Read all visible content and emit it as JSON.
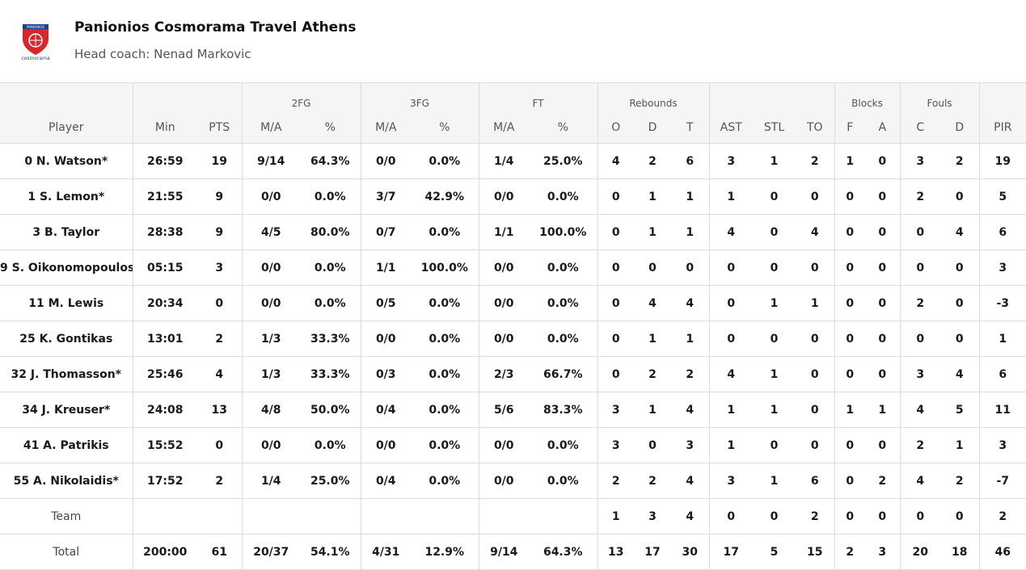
{
  "header": {
    "team_name": "Panionios Cosmorama Travel Athens",
    "coach": "Head coach: Nenad Markovic",
    "logo_icon": "panionios-crest-icon",
    "logo_text": "PANIONIOS",
    "sponsor_text": "cosmorama"
  },
  "groups": {
    "fg2": "2FG",
    "fg3": "3FG",
    "ft": "FT",
    "rebounds": "Rebounds",
    "blocks": "Blocks",
    "fouls": "Fouls"
  },
  "columns": {
    "player": "Player",
    "min": "Min",
    "pts": "PTS",
    "fg2_ma": "M/A",
    "fg2_pct": "%",
    "fg3_ma": "M/A",
    "fg3_pct": "%",
    "ft_ma": "M/A",
    "ft_pct": "%",
    "reb_o": "O",
    "reb_d": "D",
    "reb_t": "T",
    "ast": "AST",
    "stl": "STL",
    "to": "TO",
    "blk_f": "F",
    "blk_a": "A",
    "foul_c": "C",
    "foul_d": "D",
    "pir": "PIR"
  },
  "rows": [
    {
      "player": "0 N. Watson*",
      "min": "26:59",
      "pts": "19",
      "fg2_ma": "9/14",
      "fg2_pct": "64.3%",
      "fg3_ma": "0/0",
      "fg3_pct": "0.0%",
      "ft_ma": "1/4",
      "ft_pct": "25.0%",
      "reb_o": "4",
      "reb_d": "2",
      "reb_t": "6",
      "ast": "3",
      "stl": "1",
      "to": "2",
      "blk_f": "1",
      "blk_a": "0",
      "foul_c": "3",
      "foul_d": "2",
      "pir": "19"
    },
    {
      "player": "1 S. Lemon*",
      "min": "21:55",
      "pts": "9",
      "fg2_ma": "0/0",
      "fg2_pct": "0.0%",
      "fg3_ma": "3/7",
      "fg3_pct": "42.9%",
      "ft_ma": "0/0",
      "ft_pct": "0.0%",
      "reb_o": "0",
      "reb_d": "1",
      "reb_t": "1",
      "ast": "1",
      "stl": "0",
      "to": "0",
      "blk_f": "0",
      "blk_a": "0",
      "foul_c": "2",
      "foul_d": "0",
      "pir": "5"
    },
    {
      "player": "3 B. Taylor",
      "min": "28:38",
      "pts": "9",
      "fg2_ma": "4/5",
      "fg2_pct": "80.0%",
      "fg3_ma": "0/7",
      "fg3_pct": "0.0%",
      "ft_ma": "1/1",
      "ft_pct": "100.0%",
      "reb_o": "0",
      "reb_d": "1",
      "reb_t": "1",
      "ast": "4",
      "stl": "0",
      "to": "4",
      "blk_f": "0",
      "blk_a": "0",
      "foul_c": "0",
      "foul_d": "4",
      "pir": "6"
    },
    {
      "player": "9 S. Oikonomopoulos",
      "min": "05:15",
      "pts": "3",
      "fg2_ma": "0/0",
      "fg2_pct": "0.0%",
      "fg3_ma": "1/1",
      "fg3_pct": "100.0%",
      "ft_ma": "0/0",
      "ft_pct": "0.0%",
      "reb_o": "0",
      "reb_d": "0",
      "reb_t": "0",
      "ast": "0",
      "stl": "0",
      "to": "0",
      "blk_f": "0",
      "blk_a": "0",
      "foul_c": "0",
      "foul_d": "0",
      "pir": "3"
    },
    {
      "player": "11 M. Lewis",
      "min": "20:34",
      "pts": "0",
      "fg2_ma": "0/0",
      "fg2_pct": "0.0%",
      "fg3_ma": "0/5",
      "fg3_pct": "0.0%",
      "ft_ma": "0/0",
      "ft_pct": "0.0%",
      "reb_o": "0",
      "reb_d": "4",
      "reb_t": "4",
      "ast": "0",
      "stl": "1",
      "to": "1",
      "blk_f": "0",
      "blk_a": "0",
      "foul_c": "2",
      "foul_d": "0",
      "pir": "-3"
    },
    {
      "player": "25 K. Gontikas",
      "min": "13:01",
      "pts": "2",
      "fg2_ma": "1/3",
      "fg2_pct": "33.3%",
      "fg3_ma": "0/0",
      "fg3_pct": "0.0%",
      "ft_ma": "0/0",
      "ft_pct": "0.0%",
      "reb_o": "0",
      "reb_d": "1",
      "reb_t": "1",
      "ast": "0",
      "stl": "0",
      "to": "0",
      "blk_f": "0",
      "blk_a": "0",
      "foul_c": "0",
      "foul_d": "0",
      "pir": "1"
    },
    {
      "player": "32 J. Thomasson*",
      "min": "25:46",
      "pts": "4",
      "fg2_ma": "1/3",
      "fg2_pct": "33.3%",
      "fg3_ma": "0/3",
      "fg3_pct": "0.0%",
      "ft_ma": "2/3",
      "ft_pct": "66.7%",
      "reb_o": "0",
      "reb_d": "2",
      "reb_t": "2",
      "ast": "4",
      "stl": "1",
      "to": "0",
      "blk_f": "0",
      "blk_a": "0",
      "foul_c": "3",
      "foul_d": "4",
      "pir": "6"
    },
    {
      "player": "34 J. Kreuser*",
      "min": "24:08",
      "pts": "13",
      "fg2_ma": "4/8",
      "fg2_pct": "50.0%",
      "fg3_ma": "0/4",
      "fg3_pct": "0.0%",
      "ft_ma": "5/6",
      "ft_pct": "83.3%",
      "reb_o": "3",
      "reb_d": "1",
      "reb_t": "4",
      "ast": "1",
      "stl": "1",
      "to": "0",
      "blk_f": "1",
      "blk_a": "1",
      "foul_c": "4",
      "foul_d": "5",
      "pir": "11"
    },
    {
      "player": "41 A. Patrikis",
      "min": "15:52",
      "pts": "0",
      "fg2_ma": "0/0",
      "fg2_pct": "0.0%",
      "fg3_ma": "0/0",
      "fg3_pct": "0.0%",
      "ft_ma": "0/0",
      "ft_pct": "0.0%",
      "reb_o": "3",
      "reb_d": "0",
      "reb_t": "3",
      "ast": "1",
      "stl": "0",
      "to": "0",
      "blk_f": "0",
      "blk_a": "0",
      "foul_c": "2",
      "foul_d": "1",
      "pir": "3"
    },
    {
      "player": "55 A. Nikolaidis*",
      "min": "17:52",
      "pts": "2",
      "fg2_ma": "1/4",
      "fg2_pct": "25.0%",
      "fg3_ma": "0/4",
      "fg3_pct": "0.0%",
      "ft_ma": "0/0",
      "ft_pct": "0.0%",
      "reb_o": "2",
      "reb_d": "2",
      "reb_t": "4",
      "ast": "3",
      "stl": "1",
      "to": "6",
      "blk_f": "0",
      "blk_a": "2",
      "foul_c": "4",
      "foul_d": "2",
      "pir": "-7"
    }
  ],
  "team_row": {
    "player": "Team",
    "min": "",
    "pts": "",
    "fg2_ma": "",
    "fg2_pct": "",
    "fg3_ma": "",
    "fg3_pct": "",
    "ft_ma": "",
    "ft_pct": "",
    "reb_o": "1",
    "reb_d": "3",
    "reb_t": "4",
    "ast": "0",
    "stl": "0",
    "to": "2",
    "blk_f": "0",
    "blk_a": "0",
    "foul_c": "0",
    "foul_d": "0",
    "pir": "2"
  },
  "total_row": {
    "player": "Total",
    "min": "200:00",
    "pts": "61",
    "fg2_ma": "20/37",
    "fg2_pct": "54.1%",
    "fg3_ma": "4/31",
    "fg3_pct": "12.9%",
    "ft_ma": "9/14",
    "ft_pct": "64.3%",
    "reb_o": "13",
    "reb_d": "17",
    "reb_t": "30",
    "ast": "17",
    "stl": "5",
    "to": "15",
    "blk_f": "2",
    "blk_a": "3",
    "foul_c": "20",
    "foul_d": "18",
    "pir": "46"
  },
  "colors": {
    "header_bg": "#f5f5f5",
    "border": "#dcdcdc",
    "logo_red": "#d8262d",
    "logo_blue": "#1d3f8f"
  }
}
